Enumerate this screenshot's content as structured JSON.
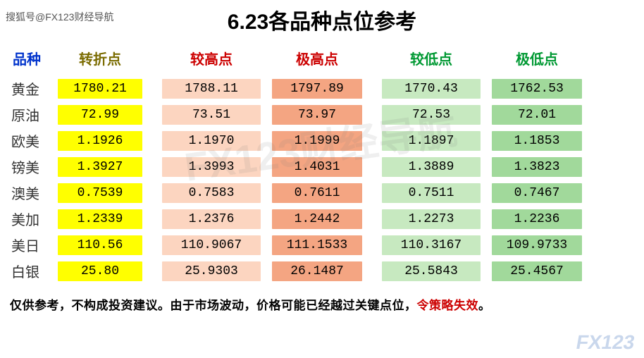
{
  "source_tag": "搜狐号@FX123财经导航",
  "title": "6.23各品种点位参考",
  "watermark_text": "FX123财经导航",
  "bottom_mark": "FX123",
  "colors": {
    "title": "#000000",
    "header_product": "#0033cc",
    "header_pivot": "#7a6b00",
    "header_high": "#cc0000",
    "header_low": "#009933",
    "cell_pivot": "#ffff00",
    "cell_modhigh": "#fcd5c0",
    "cell_exhigh": "#f4a582",
    "cell_modlow": "#c7e9c0",
    "cell_exlow": "#a1d99b",
    "footer_invalid": "#cc0000"
  },
  "headers": {
    "product": "品种",
    "pivot": "转折点",
    "mod_high": "较高点",
    "ex_high": "极高点",
    "mod_low": "较低点",
    "ex_low": "极低点"
  },
  "rows": [
    {
      "product": "黄金",
      "pivot": "1780.21",
      "mod_high": "1788.11",
      "ex_high": "1797.89",
      "mod_low": "1770.43",
      "ex_low": "1762.53"
    },
    {
      "product": "原油",
      "pivot": "72.99",
      "mod_high": "73.51",
      "ex_high": "73.97",
      "mod_low": "72.53",
      "ex_low": "72.01"
    },
    {
      "product": "欧美",
      "pivot": "1.1926",
      "mod_high": "1.1970",
      "ex_high": "1.1999",
      "mod_low": "1.1897",
      "ex_low": "1.1853"
    },
    {
      "product": "镑美",
      "pivot": "1.3927",
      "mod_high": "1.3993",
      "ex_high": "1.4031",
      "mod_low": "1.3889",
      "ex_low": "1.3823"
    },
    {
      "product": "澳美",
      "pivot": "0.7539",
      "mod_high": "0.7583",
      "ex_high": "0.7611",
      "mod_low": "0.7511",
      "ex_low": "0.7467"
    },
    {
      "product": "美加",
      "pivot": "1.2339",
      "mod_high": "1.2376",
      "ex_high": "1.2442",
      "mod_low": "1.2273",
      "ex_low": "1.2236"
    },
    {
      "product": "美日",
      "pivot": "110.56",
      "mod_high": "110.9067",
      "ex_high": "111.1533",
      "mod_low": "110.3167",
      "ex_low": "109.9733"
    },
    {
      "product": "白银",
      "pivot": "25.80",
      "mod_high": "25.9303",
      "ex_high": "26.1487",
      "mod_low": "25.5843",
      "ex_low": "25.4567"
    }
  ],
  "footer": {
    "main": "仅供参考，不构成投资建议。由于市场波动，价格可能已经越过关键点位，",
    "invalid": "令策略失效",
    "period": "。"
  }
}
